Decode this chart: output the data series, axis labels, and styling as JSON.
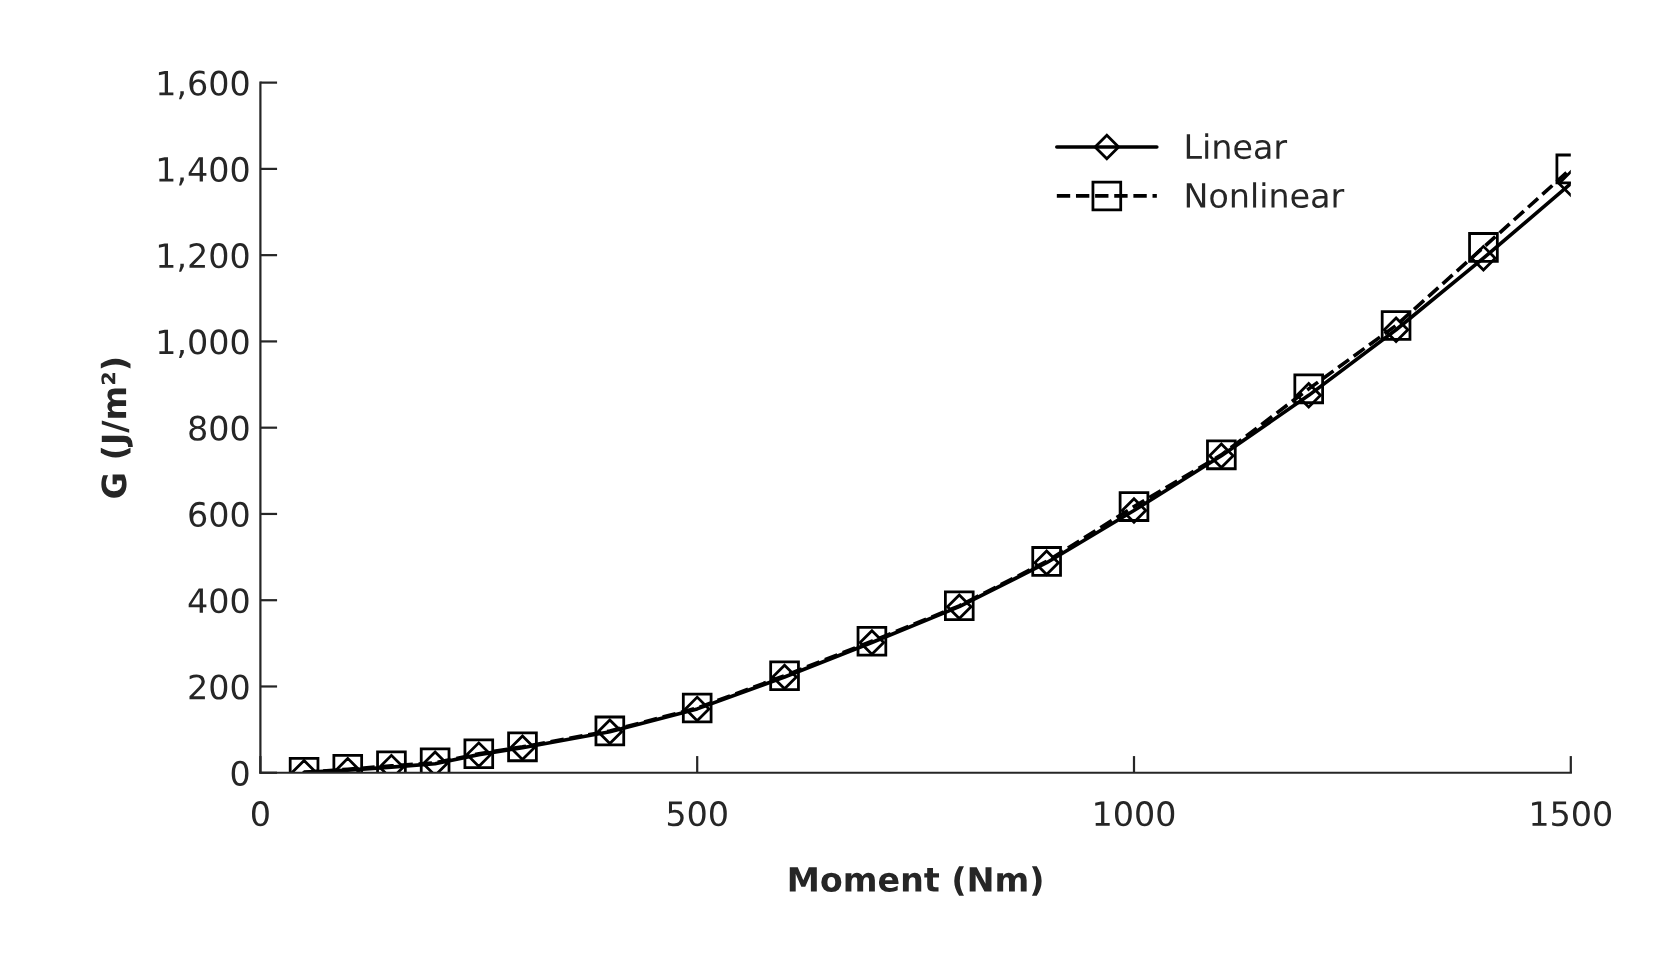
{
  "chart_data": {
    "type": "line",
    "xlabel": "Moment (Nm)",
    "ylabel": "G (J/m²)",
    "x": [
      50,
      100,
      150,
      200,
      250,
      300,
      400,
      500,
      600,
      700,
      800,
      900,
      1000,
      1100,
      1200,
      1300,
      1400,
      1500
    ],
    "series": [
      {
        "name": "Linear",
        "color": "#000000",
        "marker": "diamond",
        "line_style": "solid",
        "values": [
          1,
          6,
          13,
          21,
          42,
          58,
          95,
          148,
          222,
          302,
          385,
          487,
          608,
          735,
          875,
          1027,
          1193,
          1366
        ]
      },
      {
        "name": "Nonlinear",
        "color": "#000000",
        "marker": "square",
        "line_style": "dashed",
        "values": [
          1,
          8,
          16,
          23,
          44,
          60,
          97,
          150,
          225,
          305,
          387,
          490,
          617,
          737,
          890,
          1037,
          1218,
          1400
        ]
      }
    ],
    "xlim": [
      0,
      1500
    ],
    "xticks": [
      0,
      500,
      1000,
      1500
    ],
    "ylim": [
      0,
      1600
    ],
    "yticks": [
      {
        "value": 0,
        "label": "0"
      },
      {
        "value": 200,
        "label": "200"
      },
      {
        "value": 400,
        "label": "400"
      },
      {
        "value": 600,
        "label": "600"
      },
      {
        "value": 800,
        "label": "800"
      },
      {
        "value": 1000,
        "label": "1,000"
      },
      {
        "value": 1200,
        "label": "1,200"
      },
      {
        "value": 1400,
        "label": "1,400"
      },
      {
        "value": 1600,
        "label": "1,600"
      }
    ],
    "grid": false,
    "legend": "top right"
  }
}
